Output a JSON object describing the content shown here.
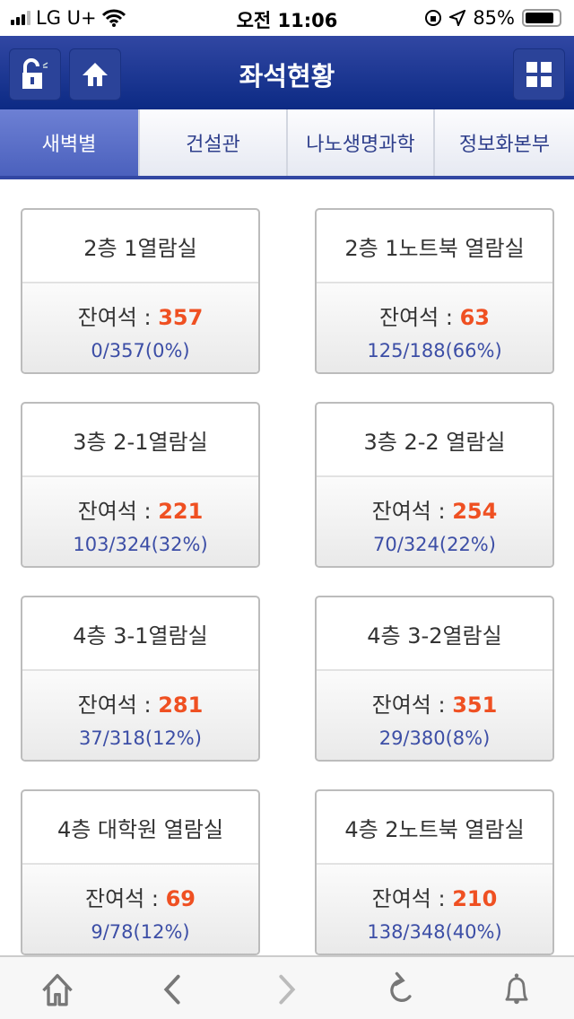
{
  "status": {
    "carrier": "LG U+",
    "time": "오전 11:06",
    "battery": "85%"
  },
  "header": {
    "title": "좌석현황",
    "left_buttons": [
      "lock-open-icon",
      "home-icon"
    ],
    "right_button": "grid-menu-icon"
  },
  "colors": {
    "accent": "#3147a3",
    "remaining": "#ef5022",
    "usage": "#3c4ea6"
  },
  "tabs": [
    {
      "label": "새벽별",
      "active": true
    },
    {
      "label": "건설관",
      "active": false
    },
    {
      "label": "나노생명과학",
      "active": false
    },
    {
      "label": "정보화본부",
      "active": false
    }
  ],
  "remaining_label": "잔여석 : ",
  "rooms": [
    {
      "name": "2층 1열람실",
      "remaining": "357",
      "usage": "0/357(0%)"
    },
    {
      "name": "2층 1노트북 열람실",
      "remaining": "63",
      "usage": "125/188(66%)"
    },
    {
      "name": "3층 2-1열람실",
      "remaining": "221",
      "usage": "103/324(32%)"
    },
    {
      "name": "3층 2-2 열람실",
      "remaining": "254",
      "usage": "70/324(22%)"
    },
    {
      "name": "4층 3-1열람실",
      "remaining": "281",
      "usage": "37/318(12%)"
    },
    {
      "name": "4층 3-2열람실",
      "remaining": "351",
      "usage": "29/380(8%)"
    },
    {
      "name": "4층 대학원 열람실",
      "remaining": "69",
      "usage": "9/78(12%)"
    },
    {
      "name": "4층 2노트북 열람실",
      "remaining": "210",
      "usage": "138/348(40%)"
    }
  ],
  "toolbar": [
    {
      "icon": "home-icon",
      "enabled": true
    },
    {
      "icon": "back-icon",
      "enabled": true
    },
    {
      "icon": "forward-icon",
      "enabled": false
    },
    {
      "icon": "refresh-icon",
      "enabled": true
    },
    {
      "icon": "bell-icon",
      "enabled": true
    }
  ]
}
